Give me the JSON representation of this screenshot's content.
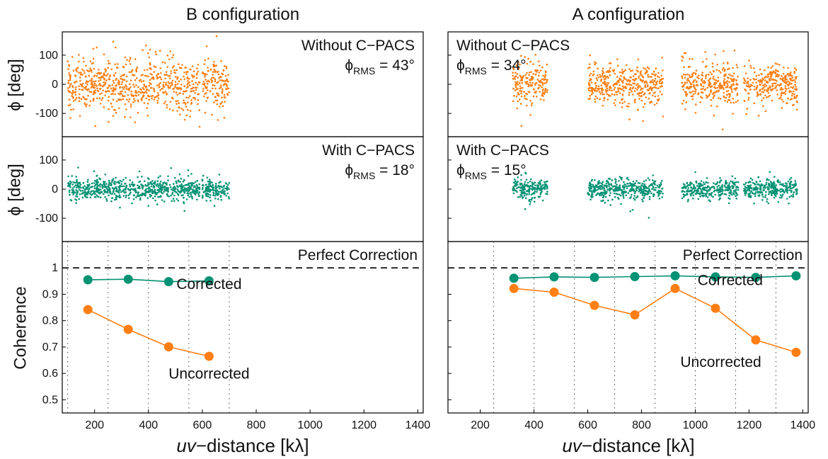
{
  "chart_data": {
    "type": "scatter",
    "columns": [
      {
        "title": "B configuration",
        "phase_panels": [
          {
            "label": "Without C−PACS",
            "rms_label": "RMS",
            "rms_value": " = 43°",
            "segments": [
              [
                100,
                590
              ],
              [
                600,
                700
              ]
            ],
            "amplitude": 100
          },
          {
            "label": "With C−PACS",
            "rms_label": "RMS",
            "rms_value": " = 18°",
            "segments": [
              [
                100,
                590
              ],
              [
                600,
                700
              ]
            ],
            "amplitude": 45
          }
        ],
        "coherence": {
          "corrected": {
            "name": "Corrected",
            "x": [
              175,
              325,
              475,
              625
            ],
            "y": [
              0.955,
              0.957,
              0.948,
              0.951
            ]
          },
          "uncorrected": {
            "name": "Uncorrected",
            "x": [
              175,
              325,
              475,
              625
            ],
            "y": [
              0.842,
              0.767,
              0.701,
              0.665
            ]
          },
          "bin_edges": [
            100,
            250,
            400,
            550,
            700
          ],
          "perfect_label": "Perfect Correction",
          "corrected_label_at": [
            625,
            0.92
          ],
          "uncorrected_label_at": [
            625,
            0.58
          ]
        }
      },
      {
        "title": "A configuration",
        "phase_panels": [
          {
            "label": "Without C−PACS",
            "rms_label": "RMS",
            "rms_value": " = 34°",
            "segments": [
              [
                320,
                450
              ],
              [
                600,
                880
              ],
              [
                950,
                1160
              ],
              [
                1180,
                1380
              ]
            ],
            "amplitude": 85
          },
          {
            "label": "With C−PACS",
            "rms_label": "RMS",
            "rms_value": " = 15°",
            "segments": [
              [
                320,
                450
              ],
              [
                600,
                880
              ],
              [
                950,
                1160
              ],
              [
                1180,
                1380
              ]
            ],
            "amplitude": 40
          }
        ],
        "coherence": {
          "corrected": {
            "name": "Corrected",
            "x": [
              325,
              475,
              625,
              775,
              925,
              1075,
              1225,
              1375
            ],
            "y": [
              0.961,
              0.966,
              0.964,
              0.967,
              0.97,
              0.966,
              0.964,
              0.97
            ]
          },
          "uncorrected": {
            "name": "Uncorrected",
            "x": [
              325,
              475,
              625,
              775,
              925,
              1075,
              1225,
              1375
            ],
            "y": [
              0.922,
              0.908,
              0.858,
              0.822,
              0.922,
              0.847,
              0.727,
              0.68
            ]
          },
          "bin_edges": [
            250,
            400,
            550,
            700,
            850,
            1000,
            1150,
            1300
          ],
          "perfect_label": "Perfect Correction",
          "corrected_label_at": [
            1130,
            0.935
          ],
          "uncorrected_label_at": [
            1095,
            0.625
          ]
        }
      }
    ],
    "phase_ylabel": "ϕ [deg]",
    "phase_ylim": [
      -180,
      180
    ],
    "phase_yticks": [
      -100,
      0,
      100
    ],
    "coherence_ylabel": "Coherence",
    "coherence_ylim": [
      0.45,
      1.1
    ],
    "coherence_yticks": [
      0.5,
      0.6,
      0.7,
      0.8,
      0.9,
      1
    ],
    "xlabel_italic": "uv",
    "xlabel_rest": "−distance [kλ]",
    "xlim": [
      80,
      1420
    ],
    "xticks": [
      200,
      400,
      600,
      800,
      1000,
      1200,
      1400
    ],
    "phi_symbol": "ϕ",
    "colors": {
      "uncorrected": "#ff7f14",
      "corrected": "#069274",
      "axis": "#000000"
    }
  }
}
